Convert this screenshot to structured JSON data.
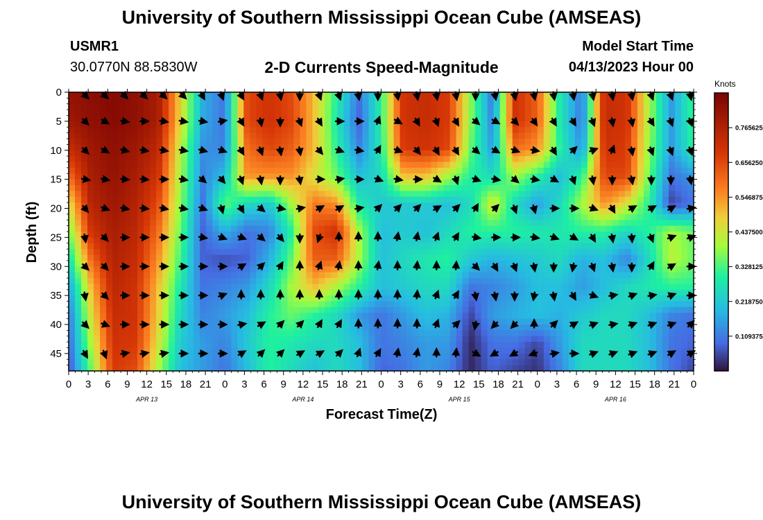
{
  "header": {
    "title": "University of Southern Mississippi Ocean Cube (AMSEAS)",
    "station": "USMR1",
    "coords": "30.0770N  88.5830W",
    "plot_title": "2-D Currents Speed-Magnitude",
    "model_label": "Model Start Time",
    "model_time": "04/13/2023 Hour 00"
  },
  "footer": {
    "title": "University of Southern Mississippi Ocean Cube (AMSEAS)"
  },
  "colors": {
    "low": "#30123b",
    "high": "#7a0403"
  },
  "chart_data": {
    "type": "heatmap",
    "title": "2-D Currents Speed-Magnitude",
    "xlabel": "Forecast Time(Z)",
    "ylabel": "Depth (ft)",
    "x_tick_labels": [
      "0",
      "3",
      "6",
      "9",
      "12",
      "15",
      "18",
      "21",
      "0",
      "3",
      "6",
      "9",
      "12",
      "15",
      "18",
      "21",
      "0",
      "3",
      "6",
      "9",
      "12",
      "15",
      "18",
      "21",
      "0",
      "3",
      "6",
      "9",
      "12",
      "15",
      "18",
      "21",
      "0"
    ],
    "date_labels": [
      {
        "label": "APR 13",
        "hour": 12
      },
      {
        "label": "APR 14",
        "hour": 36
      },
      {
        "label": "APR 15",
        "hour": 60
      },
      {
        "label": "APR 16",
        "hour": 84
      }
    ],
    "x_range_hours": [
      0,
      96
    ],
    "y_ticks": [
      0,
      5,
      10,
      15,
      20,
      25,
      30,
      35,
      40,
      45
    ],
    "y_range_ft": [
      0,
      48
    ],
    "colorbar": {
      "unit": "Knots",
      "range": [
        0,
        0.875
      ],
      "ticks": [
        "0.109375",
        "0.218750",
        "0.328125",
        "0.437500",
        "0.546875",
        "0.656250",
        "0.765625"
      ]
    },
    "arrow_hours": [
      2.5,
      5.5,
      8.5,
      11.5,
      14.5,
      17.5,
      20.5,
      23.5,
      26.5,
      29.5,
      32.5,
      35.5,
      38.5,
      41.5,
      44.5,
      47.5,
      50.5,
      53.5,
      56.5,
      59.5,
      62.5,
      65.5,
      68.5,
      71.5,
      74.5,
      77.5,
      80.5,
      83.5,
      86.5,
      89.5,
      92.5,
      95.5
    ],
    "arrow_depths_ft": [
      0.5,
      5,
      10,
      15,
      20,
      25,
      30,
      35,
      40,
      45
    ],
    "speed_knots": [
      [
        0.82,
        0.84,
        0.85,
        0.83,
        0.78,
        0.48,
        0.18,
        0.1,
        0.66,
        0.7,
        0.65,
        0.5,
        0.3,
        0.1,
        0.3,
        0.7,
        0.72,
        0.68,
        0.38,
        0.1,
        0.7,
        0.62,
        0.28,
        0.1,
        0.72,
        0.7,
        0.4,
        0.15,
        0.32
      ],
      [
        0.8,
        0.83,
        0.85,
        0.83,
        0.78,
        0.47,
        0.17,
        0.1,
        0.66,
        0.7,
        0.66,
        0.5,
        0.28,
        0.08,
        0.3,
        0.7,
        0.72,
        0.68,
        0.38,
        0.12,
        0.7,
        0.62,
        0.28,
        0.1,
        0.72,
        0.7,
        0.4,
        0.15,
        0.32
      ],
      [
        0.72,
        0.8,
        0.83,
        0.8,
        0.74,
        0.42,
        0.14,
        0.12,
        0.6,
        0.66,
        0.62,
        0.5,
        0.3,
        0.12,
        0.28,
        0.68,
        0.7,
        0.66,
        0.35,
        0.15,
        0.6,
        0.55,
        0.3,
        0.14,
        0.7,
        0.68,
        0.38,
        0.15,
        0.3
      ],
      [
        0.6,
        0.78,
        0.82,
        0.78,
        0.7,
        0.4,
        0.12,
        0.2,
        0.55,
        0.55,
        0.55,
        0.45,
        0.35,
        0.2,
        0.25,
        0.5,
        0.5,
        0.4,
        0.3,
        0.25,
        0.4,
        0.3,
        0.2,
        0.3,
        0.66,
        0.66,
        0.35,
        0.1,
        0.15
      ],
      [
        0.45,
        0.75,
        0.8,
        0.76,
        0.65,
        0.38,
        0.1,
        0.35,
        0.25,
        0.22,
        0.4,
        0.58,
        0.55,
        0.28,
        0.22,
        0.22,
        0.22,
        0.2,
        0.25,
        0.45,
        0.25,
        0.15,
        0.25,
        0.4,
        0.55,
        0.45,
        0.3,
        0.05,
        0.1
      ],
      [
        0.35,
        0.7,
        0.78,
        0.74,
        0.6,
        0.35,
        0.08,
        0.18,
        0.1,
        0.12,
        0.3,
        0.65,
        0.7,
        0.4,
        0.2,
        0.22,
        0.2,
        0.25,
        0.3,
        0.3,
        0.3,
        0.28,
        0.28,
        0.3,
        0.3,
        0.25,
        0.3,
        0.4,
        0.35
      ],
      [
        0.25,
        0.6,
        0.76,
        0.72,
        0.55,
        0.32,
        0.08,
        0.06,
        0.08,
        0.18,
        0.35,
        0.62,
        0.62,
        0.4,
        0.2,
        0.25,
        0.28,
        0.3,
        0.22,
        0.18,
        0.2,
        0.22,
        0.25,
        0.18,
        0.2,
        0.12,
        0.25,
        0.42,
        0.35
      ],
      [
        0.15,
        0.5,
        0.74,
        0.7,
        0.5,
        0.28,
        0.1,
        0.12,
        0.15,
        0.25,
        0.4,
        0.5,
        0.4,
        0.3,
        0.2,
        0.22,
        0.25,
        0.25,
        0.1,
        0.12,
        0.15,
        0.2,
        0.2,
        0.15,
        0.2,
        0.25,
        0.28,
        0.3,
        0.3
      ],
      [
        0.1,
        0.45,
        0.72,
        0.7,
        0.48,
        0.25,
        0.12,
        0.15,
        0.2,
        0.3,
        0.35,
        0.3,
        0.25,
        0.15,
        0.1,
        0.15,
        0.2,
        0.18,
        0.05,
        0.15,
        0.18,
        0.2,
        0.18,
        0.22,
        0.25,
        0.25,
        0.2,
        0.12,
        0.1
      ],
      [
        0.08,
        0.4,
        0.7,
        0.68,
        0.45,
        0.22,
        0.15,
        0.12,
        0.22,
        0.3,
        0.28,
        0.25,
        0.25,
        0.2,
        0.1,
        0.12,
        0.15,
        0.15,
        0.02,
        0.1,
        0.1,
        0.05,
        0.15,
        0.25,
        0.25,
        0.25,
        0.2,
        0.1,
        0.08
      ],
      [
        0.05,
        0.35,
        0.68,
        0.65,
        0.4,
        0.2,
        0.15,
        0.1,
        0.2,
        0.3,
        0.25,
        0.2,
        0.25,
        0.2,
        0.08,
        0.1,
        0.15,
        0.12,
        0.02,
        0.08,
        0.05,
        0.03,
        0.12,
        0.25,
        0.25,
        0.25,
        0.2,
        0.1,
        0.05
      ]
    ],
    "directions_deg": [
      [
        135,
        135,
        135,
        135,
        135,
        135,
        150,
        160,
        150,
        160,
        170,
        180,
        160,
        160,
        170,
        180,
        170,
        170,
        170,
        170,
        180,
        170,
        170,
        170,
        170,
        170,
        170,
        170,
        170,
        160,
        160,
        170
      ],
      [
        135,
        120,
        100,
        90,
        100,
        100,
        100,
        80,
        150,
        170,
        180,
        160,
        150,
        90,
        90,
        20,
        120,
        150,
        160,
        150,
        130,
        120,
        135,
        145,
        150,
        150,
        160,
        170,
        170,
        150,
        160,
        160
      ],
      [
        135,
        120,
        105,
        100,
        100,
        100,
        105,
        110,
        150,
        160,
        170,
        170,
        140,
        110,
        100,
        30,
        110,
        140,
        150,
        150,
        130,
        120,
        110,
        100,
        150,
        45,
        70,
        20,
        170,
        160,
        160,
        160
      ],
      [
        100,
        100,
        95,
        95,
        90,
        100,
        130,
        140,
        160,
        170,
        180,
        170,
        90,
        80,
        90,
        110,
        100,
        90,
        120,
        160,
        110,
        100,
        130,
        100,
        120,
        160,
        170,
        180,
        170,
        180,
        180,
        170
      ],
      [
        140,
        110,
        100,
        95,
        100,
        100,
        110,
        165,
        150,
        130,
        100,
        80,
        60,
        60,
        80,
        45,
        45,
        45,
        60,
        45,
        30,
        45,
        160,
        165,
        90,
        90,
        110,
        150,
        60,
        60,
        60,
        80
      ],
      [
        170,
        135,
        90,
        90,
        90,
        90,
        100,
        110,
        110,
        130,
        140,
        180,
        200,
        0,
        0,
        0,
        10,
        10,
        20,
        30,
        100,
        90,
        90,
        100,
        110,
        120,
        150,
        170,
        175,
        160,
        70,
        70
      ],
      [
        135,
        135,
        90,
        90,
        90,
        90,
        90,
        90,
        60,
        45,
        30,
        0,
        20,
        10,
        0,
        10,
        0,
        5,
        0,
        5,
        135,
        150,
        160,
        170,
        180,
        190,
        160,
        170,
        180,
        30,
        60,
        90
      ],
      [
        170,
        135,
        90,
        90,
        90,
        90,
        90,
        70,
        0,
        0,
        0,
        0,
        0,
        0,
        0,
        0,
        0,
        5,
        20,
        30,
        170,
        170,
        180,
        190,
        170,
        150,
        110,
        80,
        70,
        80,
        70,
        90
      ],
      [
        135,
        110,
        90,
        90,
        90,
        90,
        90,
        90,
        80,
        60,
        45,
        45,
        30,
        30,
        0,
        0,
        0,
        0,
        20,
        45,
        190,
        225,
        225,
        0,
        45,
        60,
        70,
        80,
        70,
        70,
        70,
        45
      ],
      [
        150,
        160,
        80,
        80,
        80,
        90,
        90,
        90,
        60,
        45,
        45,
        60,
        60,
        45,
        20,
        30,
        10,
        10,
        0,
        5,
        120,
        240,
        240,
        250,
        80,
        90,
        70,
        70,
        70,
        70,
        60,
        60
      ]
    ]
  }
}
